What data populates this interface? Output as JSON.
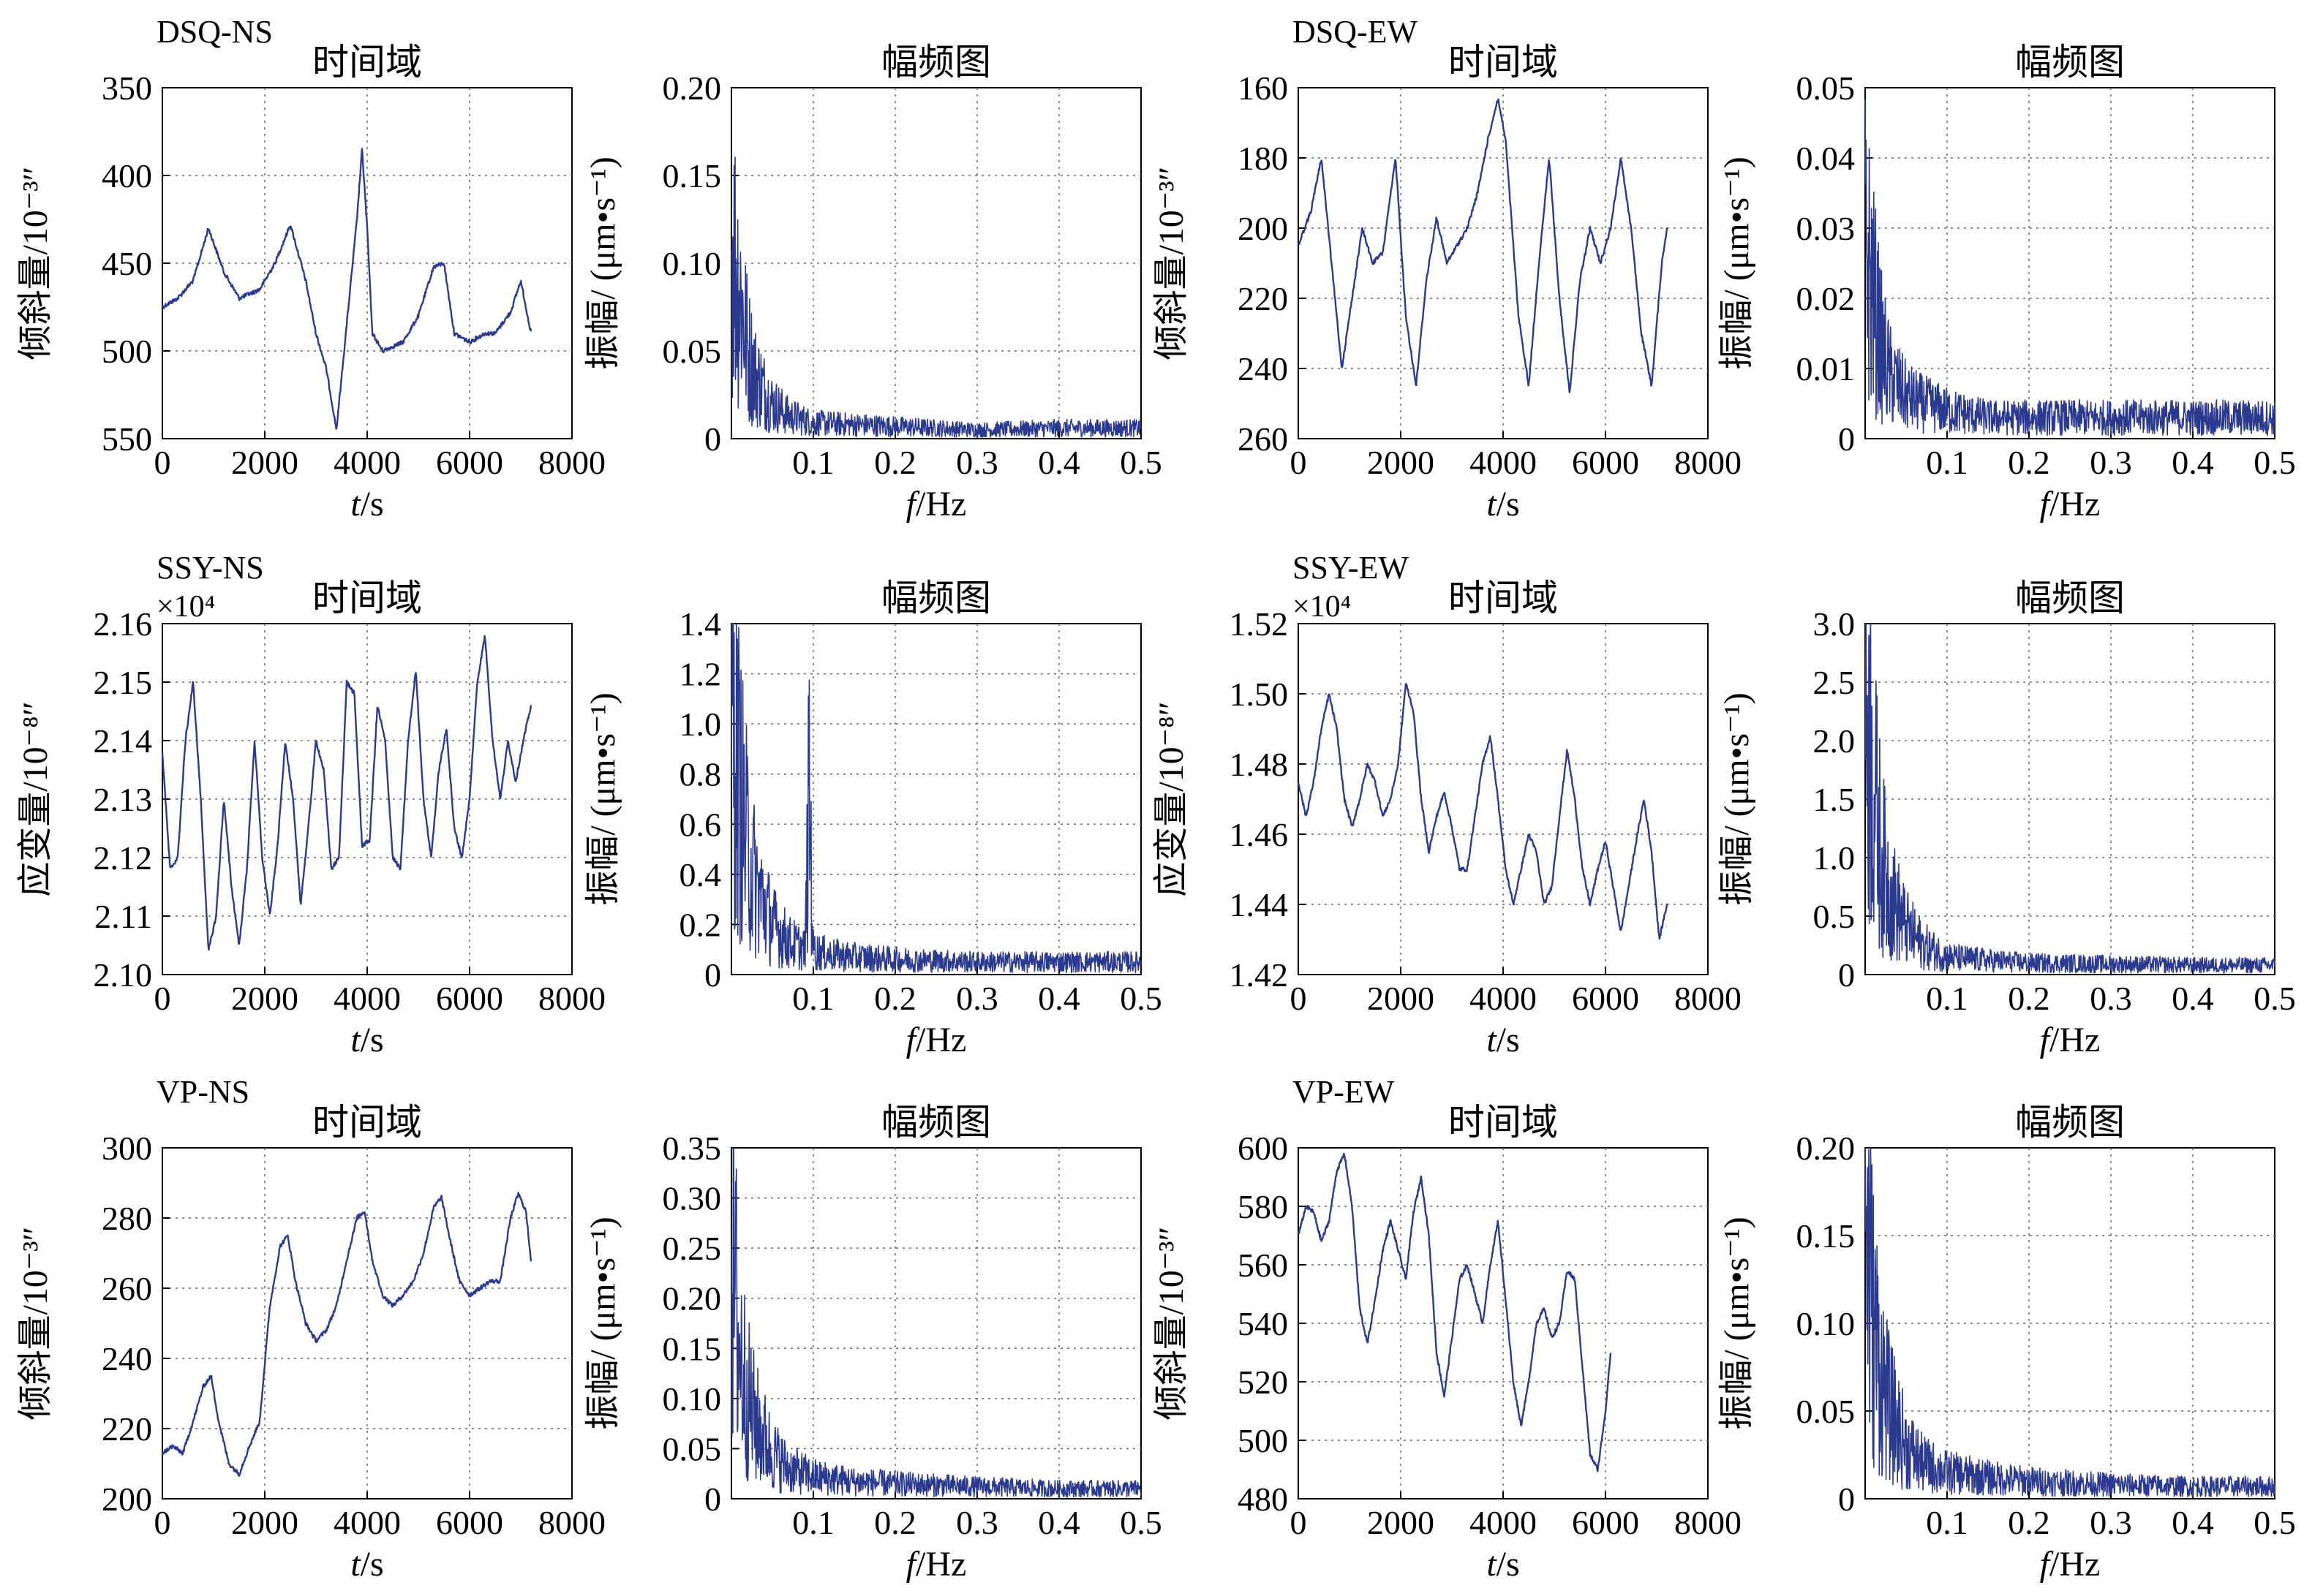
{
  "figure": {
    "title_time": "时间域",
    "title_freq": "幅频图",
    "xlabel_time_var": "t",
    "xlabel_time_unit": "/s",
    "xlabel_freq_var": "f",
    "xlabel_freq_unit": "/Hz",
    "ylabel_freq": "振幅/ (μm•s⁻¹)",
    "line_color": "#2b3a8f",
    "grid_color": "#666666"
  },
  "chart_data": [
    {
      "id": "dsq-ns-time",
      "type": "line",
      "station": "DSQ-NS",
      "title": "时间域",
      "ylabel": "倾斜量/10⁻³″",
      "xlabel": "t/s",
      "xlim": [
        0,
        8000
      ],
      "ylim": [
        350,
        550
      ],
      "y_reversed": true,
      "xticks": [
        "0",
        "2000",
        "4000",
        "6000",
        "8000"
      ],
      "yticks": [
        "350",
        "400",
        "450",
        "500",
        "550"
      ],
      "x": [
        0,
        300,
        600,
        900,
        1200,
        1500,
        1900,
        2200,
        2500,
        2800,
        3000,
        3200,
        3400,
        3550,
        3700,
        3800,
        3900,
        4000,
        4100,
        4300,
        4700,
        5000,
        5300,
        5500,
        5700,
        6000,
        6300,
        6500,
        6800,
        7000,
        7200
      ],
      "y": [
        475,
        470,
        460,
        430,
        455,
        470,
        465,
        450,
        428,
        460,
        490,
        510,
        545,
        500,
        455,
        425,
        385,
        430,
        490,
        500,
        495,
        480,
        452,
        450,
        490,
        495,
        490,
        490,
        478,
        460,
        490
      ]
    },
    {
      "id": "dsq-ns-freq",
      "type": "line",
      "title": "幅频图",
      "ylabel": "振幅/ (μm•s⁻¹)",
      "xlabel": "f/Hz",
      "xlim": [
        0,
        0.5
      ],
      "ylim": [
        0,
        0.2
      ],
      "xticks": [
        "0.1",
        "0.2",
        "0.3",
        "0.4",
        "0.5"
      ],
      "yticks": [
        "0",
        "0.05",
        "0.10",
        "0.15",
        "0.20"
      ],
      "x": [
        0.0,
        0.005,
        0.01,
        0.02,
        0.03,
        0.05,
        0.07,
        0.1,
        0.15,
        0.2,
        0.3,
        0.4,
        0.5
      ],
      "y": [
        0.11,
        0.1,
        0.085,
        0.05,
        0.035,
        0.02,
        0.013,
        0.009,
        0.008,
        0.007,
        0.005,
        0.006,
        0.006
      ]
    },
    {
      "id": "dsq-ew-time",
      "type": "line",
      "station": "DSQ-EW",
      "title": "时间域",
      "ylabel": "倾斜量/10⁻³″",
      "xlabel": "t/s",
      "xlim": [
        0,
        8000
      ],
      "ylim": [
        160,
        260
      ],
      "y_reversed": true,
      "xticks": [
        "0",
        "2000",
        "4000",
        "6000",
        "8000"
      ],
      "yticks": [
        "160",
        "180",
        "200",
        "220",
        "240",
        "260"
      ],
      "x": [
        0,
        250,
        450,
        650,
        850,
        1050,
        1250,
        1450,
        1650,
        1900,
        2100,
        2300,
        2500,
        2700,
        2900,
        3100,
        3300,
        3500,
        3700,
        3900,
        4050,
        4300,
        4500,
        4700,
        4900,
        5100,
        5300,
        5500,
        5700,
        5900,
        6100,
        6300,
        6500,
        6700,
        6900,
        7100,
        7200
      ],
      "y": [
        205,
        195,
        180,
        210,
        240,
        220,
        200,
        210,
        207,
        180,
        225,
        245,
        215,
        197,
        210,
        205,
        200,
        190,
        175,
        163,
        175,
        225,
        245,
        210,
        180,
        220,
        247,
        215,
        200,
        210,
        200,
        180,
        200,
        230,
        245,
        210,
        200
      ]
    },
    {
      "id": "dsq-ew-freq",
      "type": "line",
      "title": "幅频图",
      "ylabel": "振幅/ (μm•s⁻¹)",
      "xlabel": "f/Hz",
      "xlim": [
        0,
        0.5
      ],
      "ylim": [
        0,
        0.05
      ],
      "xticks": [
        "0.1",
        "0.2",
        "0.3",
        "0.4",
        "0.5"
      ],
      "yticks": [
        "0",
        "0.01",
        "0.02",
        "0.03",
        "0.04",
        "0.05"
      ],
      "x": [
        0.0,
        0.005,
        0.01,
        0.02,
        0.03,
        0.05,
        0.07,
        0.1,
        0.15,
        0.2,
        0.3,
        0.4,
        0.5
      ],
      "y": [
        0.027,
        0.024,
        0.02,
        0.013,
        0.009,
        0.006,
        0.005,
        0.004,
        0.003,
        0.003,
        0.003,
        0.003,
        0.003
      ]
    },
    {
      "id": "ssy-ns-time",
      "type": "line",
      "station": "SSY-NS",
      "title": "时间域",
      "y_scale": "×10⁴",
      "ylabel": "应变量/10⁻⁸″",
      "xlabel": "t/s",
      "xlim": [
        0,
        8000
      ],
      "ylim": [
        2.1,
        2.16
      ],
      "xticks": [
        "0",
        "2000",
        "4000",
        "6000",
        "8000"
      ],
      "yticks": [
        "2.10",
        "2.11",
        "2.12",
        "2.13",
        "2.14",
        "2.15",
        "2.16"
      ],
      "x": [
        0,
        150,
        300,
        450,
        600,
        750,
        900,
        1050,
        1200,
        1350,
        1500,
        1650,
        1800,
        1950,
        2100,
        2250,
        2400,
        2550,
        2700,
        2850,
        3000,
        3150,
        3300,
        3450,
        3600,
        3750,
        3900,
        4050,
        4200,
        4350,
        4500,
        4650,
        4800,
        4950,
        5100,
        5250,
        5400,
        5550,
        5700,
        5850,
        6000,
        6150,
        6300,
        6450,
        6600,
        6750,
        6900,
        7050,
        7200
      ],
      "y": [
        2.138,
        2.118,
        2.12,
        2.14,
        2.15,
        2.13,
        2.104,
        2.11,
        2.13,
        2.115,
        2.105,
        2.118,
        2.14,
        2.12,
        2.11,
        2.122,
        2.14,
        2.13,
        2.112,
        2.125,
        2.14,
        2.135,
        2.118,
        2.12,
        2.15,
        2.148,
        2.122,
        2.123,
        2.146,
        2.14,
        2.12,
        2.118,
        2.14,
        2.152,
        2.13,
        2.12,
        2.135,
        2.142,
        2.125,
        2.12,
        2.13,
        2.15,
        2.158,
        2.14,
        2.13,
        2.14,
        2.133,
        2.14,
        2.146
      ]
    },
    {
      "id": "ssy-ns-freq",
      "type": "line",
      "title": "幅频图",
      "ylabel": "振幅/ (μm•s⁻¹)",
      "xlabel": "f/Hz",
      "xlim": [
        0,
        0.5
      ],
      "ylim": [
        0,
        1.4
      ],
      "xticks": [
        "0.1",
        "0.2",
        "0.3",
        "0.4",
        "0.5"
      ],
      "yticks": [
        "0",
        "0.2",
        "0.4",
        "0.6",
        "0.8",
        "1.0",
        "1.2",
        "1.4"
      ],
      "x": [
        0.0,
        0.005,
        0.01,
        0.02,
        0.03,
        0.05,
        0.07,
        0.09,
        0.095,
        0.1,
        0.105,
        0.12,
        0.15,
        0.2,
        0.3,
        0.4,
        0.5
      ],
      "y": [
        1.05,
        0.9,
        0.75,
        0.5,
        0.35,
        0.2,
        0.13,
        0.1,
        0.75,
        0.1,
        0.09,
        0.08,
        0.07,
        0.06,
        0.05,
        0.05,
        0.05
      ]
    },
    {
      "id": "ssy-ew-time",
      "type": "line",
      "station": "SSY-EW",
      "title": "时间域",
      "y_scale": "×10⁴",
      "ylabel": "应变量/10⁻⁸″",
      "xlabel": "t/s",
      "xlim": [
        0,
        8000
      ],
      "ylim": [
        1.42,
        1.52
      ],
      "xticks": [
        "0",
        "2000",
        "4000",
        "6000",
        "8000"
      ],
      "yticks": [
        "1.42",
        "1.44",
        "1.46",
        "1.48",
        "1.50",
        "1.52"
      ],
      "x": [
        0,
        150,
        300,
        450,
        600,
        750,
        900,
        1050,
        1200,
        1350,
        1500,
        1650,
        1800,
        1950,
        2100,
        2250,
        2400,
        2550,
        2700,
        2850,
        3000,
        3150,
        3300,
        3450,
        3600,
        3750,
        3900,
        4050,
        4200,
        4350,
        4500,
        4650,
        4800,
        4950,
        5100,
        5250,
        5400,
        5550,
        5700,
        5850,
        6000,
        6150,
        6300,
        6450,
        6600,
        6750,
        6900,
        7050,
        7200
      ],
      "y": [
        1.475,
        1.465,
        1.475,
        1.49,
        1.5,
        1.49,
        1.47,
        1.462,
        1.47,
        1.48,
        1.475,
        1.465,
        1.47,
        1.48,
        1.503,
        1.495,
        1.47,
        1.455,
        1.465,
        1.472,
        1.462,
        1.45,
        1.45,
        1.465,
        1.48,
        1.488,
        1.47,
        1.45,
        1.44,
        1.45,
        1.46,
        1.455,
        1.44,
        1.445,
        1.465,
        1.484,
        1.47,
        1.45,
        1.44,
        1.45,
        1.458,
        1.445,
        1.432,
        1.445,
        1.458,
        1.47,
        1.455,
        1.43,
        1.44
      ]
    },
    {
      "id": "ssy-ew-freq",
      "type": "line",
      "title": "幅频图",
      "ylabel": "振幅/ (μm•s⁻¹)",
      "xlabel": "f/Hz",
      "xlim": [
        0,
        0.5
      ],
      "ylim": [
        0,
        3.0
      ],
      "xticks": [
        "0.1",
        "0.2",
        "0.3",
        "0.4",
        "0.5"
      ],
      "yticks": [
        "0",
        "0.5",
        "1.0",
        "1.5",
        "2.0",
        "2.5",
        "3.0"
      ],
      "x": [
        0.0,
        0.005,
        0.01,
        0.02,
        0.03,
        0.05,
        0.07,
        0.1,
        0.15,
        0.2,
        0.3,
        0.4,
        0.5
      ],
      "y": [
        2.45,
        2.0,
        1.6,
        1.0,
        0.7,
        0.4,
        0.25,
        0.15,
        0.12,
        0.1,
        0.09,
        0.08,
        0.08
      ]
    },
    {
      "id": "vp-ns-time",
      "type": "line",
      "station": "VP-NS",
      "title": "时间域",
      "ylabel": "倾斜量/10⁻³″",
      "xlabel": "t/s",
      "xlim": [
        0,
        8000
      ],
      "ylim": [
        200,
        300
      ],
      "xticks": [
        "0",
        "2000",
        "4000",
        "6000",
        "8000"
      ],
      "yticks": [
        "200",
        "220",
        "240",
        "260",
        "280",
        "300"
      ],
      "x": [
        0,
        200,
        400,
        600,
        800,
        950,
        1100,
        1300,
        1500,
        1700,
        1900,
        2100,
        2300,
        2450,
        2600,
        2800,
        3000,
        3200,
        3400,
        3600,
        3800,
        3950,
        4100,
        4300,
        4500,
        4700,
        4900,
        5100,
        5300,
        5450,
        5600,
        5800,
        6000,
        6200,
        6400,
        6600,
        6800,
        6950,
        7100,
        7200
      ],
      "y": [
        213,
        215,
        213,
        222,
        232,
        235,
        222,
        210,
        207,
        215,
        222,
        255,
        272,
        275,
        262,
        250,
        245,
        248,
        255,
        268,
        280,
        282,
        268,
        258,
        255,
        258,
        262,
        270,
        283,
        286,
        275,
        262,
        258,
        260,
        262,
        262,
        280,
        287,
        282,
        268
      ]
    },
    {
      "id": "vp-ns-freq",
      "type": "line",
      "title": "幅频图",
      "ylabel": "振幅/ (μm•s⁻¹)",
      "xlabel": "f/Hz",
      "xlim": [
        0,
        0.5
      ],
      "ylim": [
        0,
        0.35
      ],
      "xticks": [
        "0.1",
        "0.2",
        "0.3",
        "0.4",
        "0.5"
      ],
      "yticks": [
        "0",
        "0.05",
        "0.10",
        "0.15",
        "0.20",
        "0.25",
        "0.30",
        "0.35"
      ],
      "x": [
        0.0,
        0.005,
        0.01,
        0.02,
        0.03,
        0.05,
        0.07,
        0.1,
        0.15,
        0.2,
        0.3,
        0.4,
        0.5
      ],
      "y": [
        0.24,
        0.2,
        0.15,
        0.1,
        0.075,
        0.045,
        0.03,
        0.022,
        0.017,
        0.015,
        0.012,
        0.01,
        0.01
      ]
    },
    {
      "id": "vp-ew-time",
      "type": "line",
      "station": "VP-EW",
      "title": "时间域",
      "ylabel": "倾斜量/10⁻³″",
      "xlabel": "t/s",
      "xlim": [
        0,
        8000
      ],
      "ylim": [
        480,
        600
      ],
      "xticks": [
        "0",
        "2000",
        "4000",
        "6000",
        "8000"
      ],
      "yticks": [
        "480",
        "500",
        "520",
        "540",
        "560",
        "580",
        "600"
      ],
      "x": [
        0,
        150,
        300,
        450,
        600,
        750,
        900,
        1050,
        1200,
        1350,
        1500,
        1650,
        1800,
        1950,
        2100,
        2250,
        2400,
        2550,
        2700,
        2850,
        3000,
        3150,
        3300,
        3450,
        3600,
        3750,
        3900,
        4050,
        4200,
        4350,
        4500,
        4650,
        4800,
        4950,
        5100,
        5250,
        5400,
        5550,
        5700,
        5850,
        6000,
        6100
      ],
      "y": [
        570,
        580,
        578,
        568,
        575,
        592,
        598,
        580,
        545,
        533,
        548,
        565,
        575,
        565,
        555,
        578,
        590,
        570,
        530,
        515,
        535,
        555,
        560,
        550,
        540,
        560,
        575,
        548,
        520,
        505,
        520,
        540,
        545,
        535,
        540,
        558,
        555,
        525,
        495,
        490,
        510,
        530
      ]
    },
    {
      "id": "vp-ew-freq",
      "type": "line",
      "title": "幅频图",
      "ylabel": "振幅/ (μm•s⁻¹)",
      "xlabel": "f/Hz",
      "xlim": [
        0,
        0.5
      ],
      "ylim": [
        0,
        0.2
      ],
      "xticks": [
        "0.1",
        "0.2",
        "0.3",
        "0.4",
        "0.5"
      ],
      "yticks": [
        "0",
        "0.05",
        "0.10",
        "0.15",
        "0.20"
      ],
      "x": [
        0.0,
        0.005,
        0.01,
        0.02,
        0.03,
        0.05,
        0.07,
        0.1,
        0.15,
        0.2,
        0.3,
        0.4,
        0.5
      ],
      "y": [
        0.17,
        0.13,
        0.1,
        0.07,
        0.05,
        0.03,
        0.02,
        0.015,
        0.012,
        0.01,
        0.008,
        0.007,
        0.007
      ]
    }
  ]
}
